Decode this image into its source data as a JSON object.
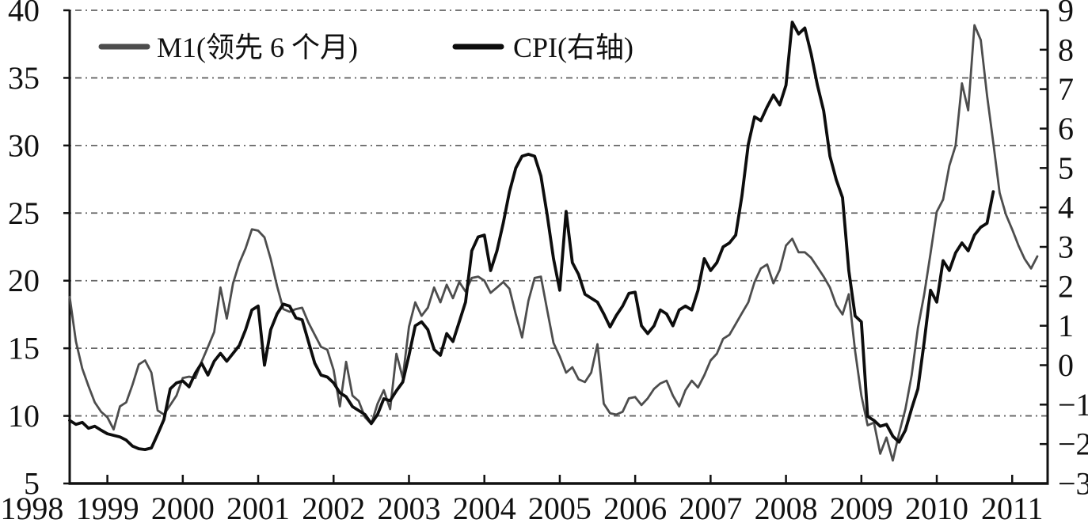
{
  "chart_data": {
    "type": "line",
    "title": "",
    "x_axis": {
      "min": 1998.5,
      "max": 2011.47,
      "tick_years": [
        1999,
        2000,
        2001,
        2002,
        2003,
        2004,
        2005,
        2006,
        2007,
        2008,
        2009,
        2010,
        2011
      ],
      "labels": [
        "1998",
        "1999",
        "2000",
        "2001",
        "2002",
        "2003",
        "2004",
        "2005",
        "2006",
        "2007",
        "2008",
        "2009",
        "2010",
        "2011"
      ],
      "label_values": [
        1998,
        1999,
        2000,
        2001,
        2002,
        2003,
        2004,
        2005,
        2006,
        2007,
        2008,
        2009,
        2010,
        2011
      ]
    },
    "y_left": {
      "min": 5,
      "max": 40,
      "ticks": [
        40,
        35,
        30,
        25,
        20,
        15,
        10,
        5
      ],
      "tick_labels": [
        "40",
        "35",
        "30",
        "25",
        "20",
        "15",
        "10",
        "5"
      ],
      "gridline_values": [
        40,
        35,
        30,
        25,
        20,
        15,
        10
      ]
    },
    "y_right": {
      "min": -3,
      "max": 9,
      "ticks": [
        9,
        8,
        7,
        6,
        5,
        4,
        3,
        2,
        1,
        0,
        -1,
        -2,
        -3
      ],
      "tick_labels": [
        "9",
        "8",
        "7",
        "6",
        "5",
        "4",
        "3",
        "2",
        "1",
        "0",
        "−1",
        "−2",
        "−3"
      ]
    },
    "grid": "dashed-horizontal",
    "legend_position": "top-inside",
    "legend": [
      {
        "label": "M1(领先 6 个月)",
        "color": "#4d4d4d"
      },
      {
        "label": "CPI(右轴)",
        "color": "#0d0d0d"
      }
    ],
    "series": [
      {
        "name": "M1(领先 6 个月)",
        "axis": "left",
        "color": "#4d4d4d",
        "stroke_width": 2.8,
        "x_start": 1998.5,
        "x_step": 0.0833333,
        "values": [
          18.8,
          15.5,
          13.5,
          12.2,
          11.0,
          10.3,
          9.9,
          9.0,
          10.7,
          11.0,
          12.3,
          13.8,
          14.1,
          13.2,
          10.4,
          10.1,
          10.8,
          11.5,
          12.8,
          12.9,
          12.8,
          14.0,
          15.1,
          16.2,
          19.5,
          17.2,
          19.8,
          21.3,
          22.4,
          23.8,
          23.7,
          23.2,
          21.6,
          19.6,
          17.9,
          17.7,
          17.9,
          18.0,
          16.9,
          16.0,
          15.1,
          14.9,
          13.4,
          10.7,
          14.0,
          11.5,
          11.1,
          9.9,
          9.4,
          10.9,
          11.9,
          10.5,
          14.6,
          12.8,
          16.6,
          18.4,
          17.4,
          18.0,
          19.5,
          18.4,
          19.7,
          18.7,
          19.9,
          19.2,
          20.2,
          20.3,
          20.0,
          19.1,
          19.5,
          19.9,
          19.4,
          17.5,
          15.8,
          18.5,
          20.2,
          20.3,
          17.8,
          15.4,
          14.4,
          13.2,
          13.6,
          12.7,
          12.5,
          13.2,
          15.3,
          10.9,
          10.2,
          10.1,
          10.3,
          11.3,
          11.4,
          10.8,
          11.3,
          12.0,
          12.4,
          12.6,
          11.5,
          10.7,
          11.9,
          12.6,
          12.1,
          13.0,
          14.1,
          14.6,
          15.7,
          16.0,
          16.8,
          17.6,
          18.4,
          19.9,
          20.9,
          21.2,
          19.8,
          20.8,
          22.6,
          23.1,
          22.1,
          22.1,
          21.7,
          21.0,
          20.3,
          19.5,
          18.2,
          17.5,
          19.0,
          14.8,
          11.5,
          9.3,
          9.5,
          7.2,
          8.4,
          6.7,
          8.7,
          10.5,
          13.0,
          16.5,
          19.0,
          22.0,
          25.1,
          26.0,
          28.5,
          30.0,
          34.6,
          32.6,
          38.9,
          37.8,
          33.7,
          30.2,
          26.5,
          24.9,
          23.8,
          22.6,
          21.6,
          20.9,
          21.8
        ]
      },
      {
        "name": "CPI(右轴)",
        "axis": "right",
        "color": "#0d0d0d",
        "stroke_width": 3.8,
        "x_start": 1998.5,
        "x_step": 0.0833333,
        "values": [
          -1.4,
          -1.5,
          -1.45,
          -1.6,
          -1.55,
          -1.65,
          -1.74,
          -1.78,
          -1.82,
          -1.9,
          -2.05,
          -2.12,
          -2.14,
          -2.1,
          -1.75,
          -1.38,
          -0.6,
          -0.45,
          -0.4,
          -0.55,
          -0.2,
          0.05,
          -0.25,
          0.1,
          0.3,
          0.1,
          0.3,
          0.5,
          0.9,
          1.4,
          1.5,
          0.0,
          0.9,
          1.3,
          1.55,
          1.5,
          1.2,
          1.15,
          0.6,
          0.05,
          -0.25,
          -0.3,
          -0.45,
          -0.7,
          -0.8,
          -1.05,
          -1.15,
          -1.25,
          -1.48,
          -1.25,
          -0.85,
          -0.9,
          -0.65,
          -0.43,
          0.25,
          1.0,
          1.1,
          0.9,
          0.4,
          0.25,
          0.8,
          0.6,
          1.1,
          1.6,
          2.9,
          3.25,
          3.3,
          2.4,
          2.9,
          3.6,
          4.4,
          5.0,
          5.3,
          5.35,
          5.3,
          4.8,
          3.8,
          2.7,
          1.9,
          3.9,
          2.6,
          2.3,
          1.8,
          1.7,
          1.6,
          1.3,
          0.97,
          1.26,
          1.5,
          1.82,
          1.85,
          1.0,
          0.8,
          1.0,
          1.4,
          1.3,
          1.0,
          1.4,
          1.5,
          1.4,
          1.9,
          2.7,
          2.4,
          2.6,
          3.0,
          3.1,
          3.3,
          4.3,
          5.6,
          6.3,
          6.2,
          6.55,
          6.85,
          6.6,
          7.1,
          8.7,
          8.4,
          8.55,
          7.9,
          7.1,
          6.45,
          5.3,
          4.7,
          4.25,
          2.4,
          1.25,
          1.1,
          -1.3,
          -1.4,
          -1.55,
          -1.5,
          -1.8,
          -1.95,
          -1.65,
          -1.1,
          -0.6,
          0.6,
          1.9,
          1.6,
          2.65,
          2.4,
          2.85,
          3.1,
          2.9,
          3.3,
          3.5,
          3.6,
          4.4
        ]
      }
    ]
  }
}
